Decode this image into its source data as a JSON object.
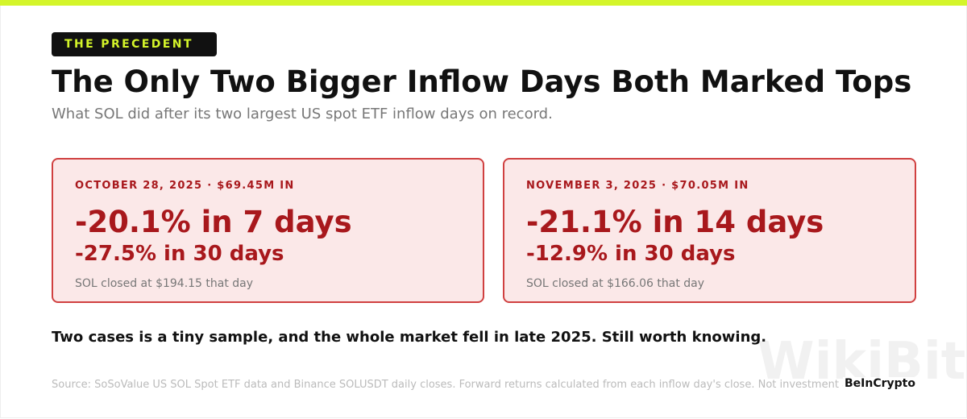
{
  "badge": "THE PRECEDENT",
  "title": "The Only Two Bigger Inflow Days Both Marked Tops",
  "subtitle": "What SOL did after its two largest US spot ETF inflow days on record.",
  "cards": [
    {
      "header": "OCTOBER 28, 2025 · $69.45M IN",
      "primary": "-20.1% in 7 days",
      "secondary": "-27.5% in 30 days",
      "note": "SOL closed at $194.15 that day"
    },
    {
      "header": "NOVEMBER 3, 2025 · $70.05M IN",
      "primary": "-21.1% in 14 days",
      "secondary": "-12.9% in 30 days",
      "note": "SOL closed at $166.06 that day"
    }
  ],
  "statement": "Two cases is a tiny sample, and the whole market fell in late 2025. Still worth knowing.",
  "source": "Source: SoSoValue US SOL Spot ETF data and Binance SOLUSDT daily closes. Forward returns calculated from each inflow day's close. Not investment advice.",
  "brand": "BeInCrypto",
  "watermark": "WikiBit"
}
